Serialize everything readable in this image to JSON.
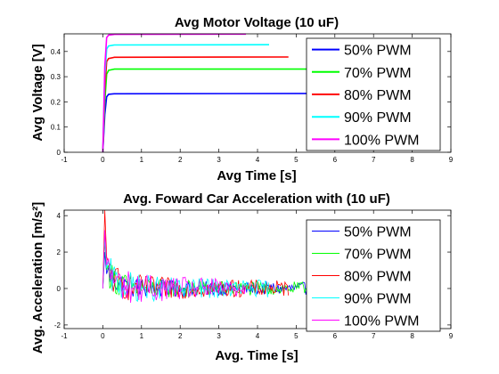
{
  "chart_data": [
    {
      "type": "line",
      "title": "Avg Motor Voltage (10 uF)",
      "xlabel": "Avg Time [s]",
      "ylabel": "Avg Voltage [V]",
      "xlim": [
        -1,
        9
      ],
      "ylim": [
        0,
        0.47
      ],
      "xticks": [
        -1,
        0,
        1,
        2,
        3,
        4,
        5,
        6,
        7,
        8,
        9
      ],
      "yticks": [
        0,
        0.1,
        0.2,
        0.3,
        0.4
      ],
      "ytick_labels": [
        "0",
        "0.1",
        "0.2",
        "0.3",
        "0.4"
      ],
      "grid": false,
      "legend_position": "top-right",
      "series": [
        {
          "name": "50% PWM",
          "color": "#0000ff",
          "x": [
            0,
            0.05,
            0.1,
            0.15,
            0.3,
            8.6
          ],
          "y": [
            0,
            0.15,
            0.22,
            0.23,
            0.232,
            0.234
          ]
        },
        {
          "name": "70% PWM",
          "color": "#00ff00",
          "x": [
            0,
            0.05,
            0.1,
            0.15,
            0.3,
            6.0
          ],
          "y": [
            0,
            0.2,
            0.31,
            0.325,
            0.33,
            0.33
          ]
        },
        {
          "name": "80% PWM",
          "color": "#ff0000",
          "x": [
            0,
            0.05,
            0.1,
            0.15,
            0.3,
            4.8
          ],
          "y": [
            0,
            0.25,
            0.36,
            0.372,
            0.377,
            0.378
          ]
        },
        {
          "name": "90% PWM",
          "color": "#00ffff",
          "x": [
            0,
            0.05,
            0.1,
            0.15,
            0.3,
            4.3
          ],
          "y": [
            0,
            0.3,
            0.41,
            0.422,
            0.426,
            0.427
          ]
        },
        {
          "name": "100% PWM",
          "color": "#ff00ff",
          "x": [
            0,
            0.05,
            0.1,
            0.15,
            0.3,
            3.7
          ],
          "y": [
            0,
            0.34,
            0.455,
            0.465,
            0.468,
            0.469
          ]
        }
      ]
    },
    {
      "type": "line",
      "title": "Avg. Foward Car Acceleration with (10 uF)",
      "xlabel": "Avg. Time [s]",
      "ylabel": "Avg. Acceleration [m/s²]",
      "xlim": [
        -1,
        9
      ],
      "ylim": [
        -2.2,
        4.3
      ],
      "xticks": [
        -1,
        0,
        1,
        2,
        3,
        4,
        5,
        6,
        7,
        8,
        9
      ],
      "yticks": [
        -2,
        0,
        2,
        4
      ],
      "ytick_labels": [
        "-2",
        "0",
        "2",
        "4"
      ],
      "grid": false,
      "legend_position": "top-right",
      "series": [
        {
          "name": "50% PWM",
          "color": "#0000ff",
          "x_end": 8.6,
          "peak": 2.0,
          "noise": 0.55
        },
        {
          "name": "70% PWM",
          "color": "#00ff00",
          "x_end": 6.0,
          "peak": 2.6,
          "noise": 0.6
        },
        {
          "name": "80% PWM",
          "color": "#ff0000",
          "x_end": 4.8,
          "peak": 4.3,
          "noise": 0.7
        },
        {
          "name": "90% PWM",
          "color": "#00ffff",
          "x_end": 4.3,
          "peak": 2.8,
          "noise": 0.75
        },
        {
          "name": "100% PWM",
          "color": "#ff00ff",
          "x_end": 3.7,
          "peak": 3.2,
          "noise": 0.8
        }
      ]
    }
  ]
}
